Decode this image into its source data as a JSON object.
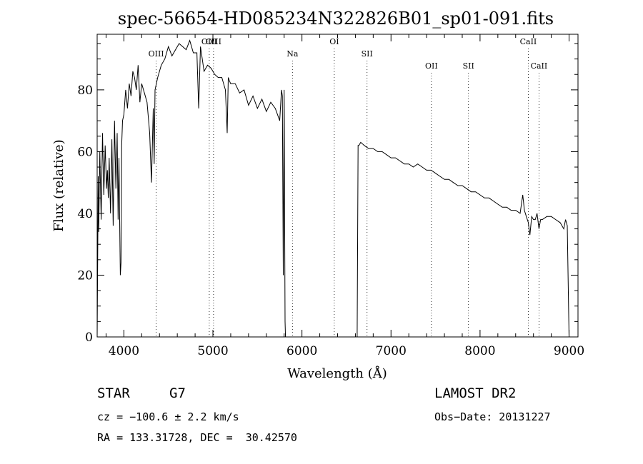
{
  "chart_data": {
    "type": "line",
    "title": "spec-56654-HD085234N322826B01_sp01-091.fits",
    "xlabel": "Wavelength (Å)",
    "ylabel": "Flux (relative)",
    "xlim": [
      3700,
      9100
    ],
    "ylim": [
      0,
      98
    ],
    "xticks": [
      4000,
      5000,
      6000,
      7000,
      8000,
      9000
    ],
    "yticks": [
      0,
      20,
      40,
      60,
      80
    ],
    "grid": false,
    "series": [
      {
        "x": [
          3700,
          3712,
          3718,
          3730,
          3745,
          3760,
          3775,
          3790,
          3805,
          3815,
          3825,
          3835,
          3850,
          3865,
          3880,
          3895,
          3910,
          3925,
          3935,
          3945,
          3960,
          3968,
          3975,
          3985,
          4000,
          4020,
          4040,
          4060,
          4080,
          4100,
          4120,
          4140,
          4160,
          4180,
          4200,
          4230,
          4260,
          4290,
          4310,
          4330,
          4340,
          4350,
          4380,
          4420,
          4460,
          4500,
          4540,
          4580,
          4620,
          4660,
          4700,
          4740,
          4780,
          4820,
          4840,
          4860,
          4880,
          4900,
          4940,
          4980,
          5020,
          5060,
          5100,
          5140,
          5160,
          5172,
          5184,
          5200,
          5250,
          5300,
          5350,
          5400,
          5450,
          5500,
          5550,
          5600,
          5650,
          5700,
          5750,
          5770,
          5780,
          5790,
          5800,
          5810,
          5815,
          6620,
          6630,
          6640,
          6660,
          6700,
          6750,
          6800,
          6850,
          6900,
          6950,
          7000,
          7050,
          7100,
          7150,
          7200,
          7250,
          7300,
          7350,
          7400,
          7450,
          7500,
          7550,
          7600,
          7650,
          7700,
          7750,
          7800,
          7850,
          7900,
          7950,
          8000,
          8050,
          8100,
          8150,
          8200,
          8250,
          8300,
          8350,
          8400,
          8450,
          8480,
          8498,
          8520,
          8542,
          8560,
          8580,
          8600,
          8620,
          8640,
          8662,
          8680,
          8700,
          8750,
          8800,
          8850,
          8900,
          8940,
          8960,
          8980,
          9000
        ],
        "values": [
          0,
          52,
          34,
          60,
          38,
          66,
          46,
          62,
          48,
          54,
          45,
          58,
          40,
          64,
          36,
          70,
          48,
          66,
          38,
          58,
          20,
          24,
          62,
          70,
          72,
          80,
          74,
          82,
          78,
          86,
          84,
          80,
          88,
          76,
          82,
          79,
          76,
          66,
          50,
          74,
          56,
          80,
          84,
          88,
          90,
          94,
          91,
          93,
          95,
          94,
          93,
          96,
          92,
          92,
          74,
          94,
          90,
          86,
          88,
          87,
          85,
          84,
          84,
          80,
          66,
          84,
          83,
          82,
          82,
          79,
          80,
          75,
          78,
          74,
          77,
          73,
          76,
          74,
          70,
          80,
          78,
          20,
          80,
          5,
          0,
          0,
          62,
          62,
          63,
          62,
          61,
          61,
          60,
          60,
          59,
          58,
          58,
          57,
          56,
          56,
          55,
          56,
          55,
          54,
          54,
          53,
          52,
          51,
          51,
          50,
          49,
          49,
          48,
          47,
          47,
          46,
          45,
          45,
          44,
          43,
          42,
          42,
          41,
          41,
          40,
          46,
          41,
          39,
          37,
          33,
          39,
          38,
          38,
          40,
          35,
          38,
          38,
          39,
          39,
          38,
          37,
          35,
          38,
          36,
          0
        ]
      }
    ],
    "annotations": [
      {
        "label": "OIII",
        "x": 4363,
        "row": "upper"
      },
      {
        "label": "OIII",
        "x": 4959,
        "row": "top"
      },
      {
        "label": "OIII",
        "x": 5007,
        "row": "top"
      },
      {
        "label": "Na",
        "x": 5893,
        "row": "upper"
      },
      {
        "label": "OI",
        "x": 6363,
        "row": "top"
      },
      {
        "label": "SII",
        "x": 6731,
        "row": "upper"
      },
      {
        "label": "OII",
        "x": 7454,
        "row": "lower"
      },
      {
        "label": "SII",
        "x": 7870,
        "row": "lower"
      },
      {
        "label": "CaII",
        "x": 8542,
        "row": "top"
      },
      {
        "label": "CaII",
        "x": 8662,
        "row": "lower"
      }
    ]
  },
  "info": {
    "object_type": "STAR",
    "subclass": "G7",
    "survey": "LAMOST DR2",
    "cz": "cz = −100.6 ± 2.2 km/s",
    "obs_date": "Obs−Date: 20131227",
    "coords": "RA = 133.31728, DEC =  30.42570"
  }
}
